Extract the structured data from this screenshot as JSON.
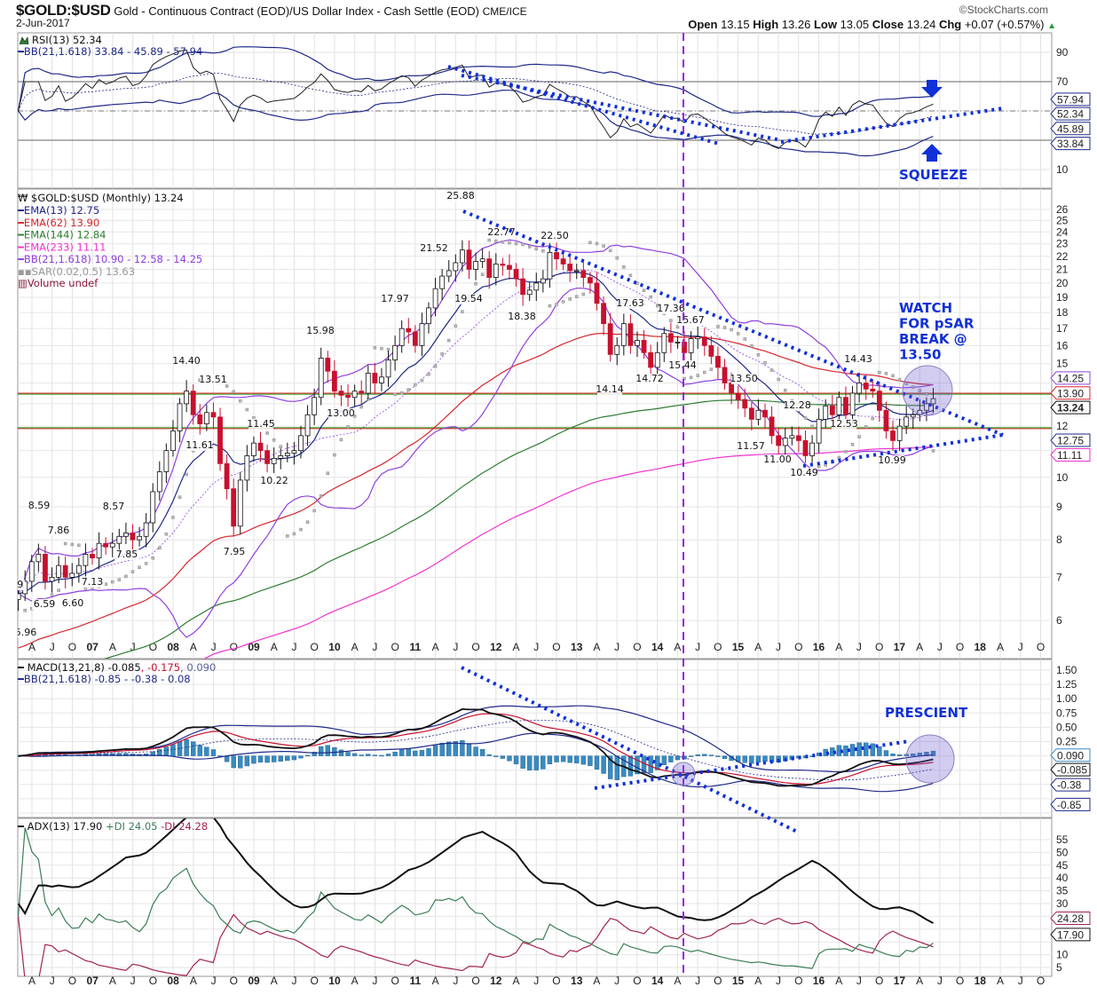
{
  "header": {
    "symbol": "$GOLD:$USD",
    "description": "Gold - Continuous Contract (EOD)/US Dollar Index - Cash Settle (EOD)",
    "exchange": "CME/ICE",
    "date": "2-Jun-2017",
    "brand": "©StockCharts.com",
    "open_label": "Open",
    "open": "13.15",
    "high_label": "High",
    "high": "13.26",
    "low_label": "Low",
    "low": "13.05",
    "close_label": "Close",
    "close": "13.24",
    "chg_label": "Chg",
    "chg": "+0.07 (+0.57%)",
    "chg_arrow": "▲"
  },
  "colors": {
    "up": "#ffffff",
    "down": "#c8102e",
    "ema13": "#1f2a8a",
    "ema62": "#d7262e",
    "ema144": "#2e7d32",
    "ema233": "#f032d0",
    "bb": "#9040e0",
    "sar": "#999999",
    "annot": "#1030d8",
    "vline": "#9a22e0",
    "hist": "#3a8ac0",
    "rsiLine": "#222222",
    "diPlus": "#3b7f55",
    "diMinus": "#a3244a"
  },
  "chart_data": {
    "type": "candlestick",
    "title": "$GOLD:$USD (Monthly) 13.24",
    "start": "2006-02",
    "interval": "monthly",
    "closes": [
      6.6,
      6.9,
      7.4,
      7.6,
      6.9,
      7.0,
      7.3,
      7.0,
      7.1,
      7.3,
      7.6,
      7.5,
      7.9,
      7.8,
      7.9,
      8.1,
      8.2,
      8.0,
      8.1,
      8.5,
      9.5,
      10.2,
      11.0,
      11.8,
      13.0,
      13.6,
      12.5,
      12.1,
      12.6,
      12.4,
      10.5,
      9.6,
      8.4,
      9.9,
      10.8,
      11.3,
      11.0,
      10.5,
      10.7,
      10.8,
      10.9,
      11.0,
      11.6,
      12.5,
      13.3,
      15.3,
      14.6,
      13.6,
      13.4,
      13.3,
      13.6,
      13.5,
      14.5,
      14.0,
      14.3,
      15.2,
      16.0,
      17.0,
      16.8,
      16.0,
      17.3,
      18.3,
      19.6,
      20.5,
      20.9,
      21.5,
      22.5,
      21.0,
      21.6,
      21.8,
      20.4,
      21.4,
      21.3,
      21.0,
      20.3,
      19.2,
      19.5,
      20.0,
      20.3,
      22.3,
      21.8,
      21.4,
      20.9,
      20.9,
      20.4,
      20.0,
      18.6,
      17.3,
      15.5,
      16.0,
      17.3,
      16.0,
      16.3,
      15.6,
      14.8,
      15.6,
      16.7,
      16.2,
      16.2,
      15.6,
      16.4,
      16.5,
      16.0,
      15.4,
      14.8,
      14.0,
      13.5,
      13.2,
      12.8,
      12.3,
      12.7,
      12.4,
      11.6,
      11.2,
      11.5,
      11.6,
      11.4,
      10.8,
      11.3,
      12.3,
      12.9,
      12.5,
      13.3,
      12.5,
      13.5,
      14.0,
      13.7,
      13.6,
      12.7,
      11.8,
      11.4,
      12.0,
      12.4,
      12.5,
      12.7,
      13.0,
      13.24
    ],
    "ylim": [
      6,
      26
    ],
    "scale": "log",
    "price_ticks": [
      "26",
      "25",
      "24",
      "23",
      "22",
      "21",
      "20",
      "19",
      "18",
      "17",
      "16",
      "15",
      "12",
      "10",
      "9",
      "8",
      "7",
      "6"
    ],
    "price_tags": [
      "14.25",
      "13.90",
      "13.24",
      "12.75",
      "11.11"
    ],
    "legend": {
      "main": "$GOLD:$USD (Monthly) 13.24",
      "ema13": "EMA(13) 12.75",
      "ema62": "EMA(62) 13.90",
      "ema144": "EMA(144) 12.84",
      "ema233": "EMA(233) 11.11",
      "bb": "BB(21,1.618) 10.90 - 12.58 - 14.25",
      "sar": "SAR(0.02,0.5) 13.63",
      "volume": "Volume undef"
    },
    "price_labels": [
      "6.49",
      "5.96",
      "8.59",
      "7.86",
      "6.59",
      "6.60",
      "7.13",
      "8.57",
      "7.85",
      "14.40",
      "13.51",
      "11.61",
      "11.45",
      "10.22",
      "7.95",
      "13.00",
      "15.98",
      "17.97",
      "21.52",
      "19.54",
      "25.88",
      "22.77",
      "22.50",
      "18.38",
      "14.14",
      "17.63",
      "14.72",
      "17.36",
      "15.67",
      "15.44",
      "13.50",
      "12.28",
      "11.57",
      "11.00",
      "10.49",
      "12.53",
      "14.43",
      "10.99"
    ],
    "horizontal_levels": {
      "red": 13.5,
      "green_upper": 13.45,
      "green_lower": 11.9,
      "red_lower": 11.9
    },
    "rsi": {
      "legend": "RSI(13) 52.34",
      "bb_legend": "BB(21,1.618) 33.84 - 45.89 - 57.94",
      "ticks": [
        "90",
        "70",
        "10"
      ],
      "tags": [
        "57.94",
        "52.34",
        "45.89",
        "33.84"
      ],
      "levels": [
        70,
        50,
        30
      ]
    },
    "macd": {
      "legend_a": "MACD(13,21,8) -0.085",
      "legend_b": ", -0.175",
      "legend_c": ", 0.090",
      "bb_legend": "BB(21,1.618) -0.85 - -0.38 - 0.08",
      "ticks": [
        "1.50",
        "1.25",
        "1.00",
        "0.75",
        "0.50",
        "0.25"
      ],
      "tags": [
        "0.090",
        "-0.085",
        "-0.38",
        "-0.85"
      ]
    },
    "adx": {
      "legend_a": "ADX(13) 17.90",
      "legend_b": " +DI 24.05",
      "legend_c": " -DI 24.28",
      "ticks": [
        "55",
        "50",
        "45",
        "40",
        "35",
        "30",
        "10",
        "5"
      ],
      "tags": [
        "24.28",
        "17.90"
      ]
    },
    "x_ticks": [
      "A",
      "J",
      "O",
      "07",
      "A",
      "J",
      "O",
      "08",
      "A",
      "J",
      "O",
      "09",
      "A",
      "J",
      "O",
      "10",
      "A",
      "J",
      "O",
      "11",
      "A",
      "J",
      "O",
      "12",
      "A",
      "J",
      "O",
      "13",
      "A",
      "J",
      "O",
      "14",
      "A",
      "J",
      "O",
      "15",
      "A",
      "J",
      "O",
      "16",
      "A",
      "J",
      "O",
      "17",
      "A",
      "J",
      "O",
      "18",
      "A",
      "J",
      "O"
    ]
  },
  "annotations": {
    "watch": [
      "WATCH",
      "FOR pSAR",
      "BREAK @",
      "13.50"
    ],
    "squeeze": "SQUEEZE",
    "prescient": "PRESCIENT"
  }
}
